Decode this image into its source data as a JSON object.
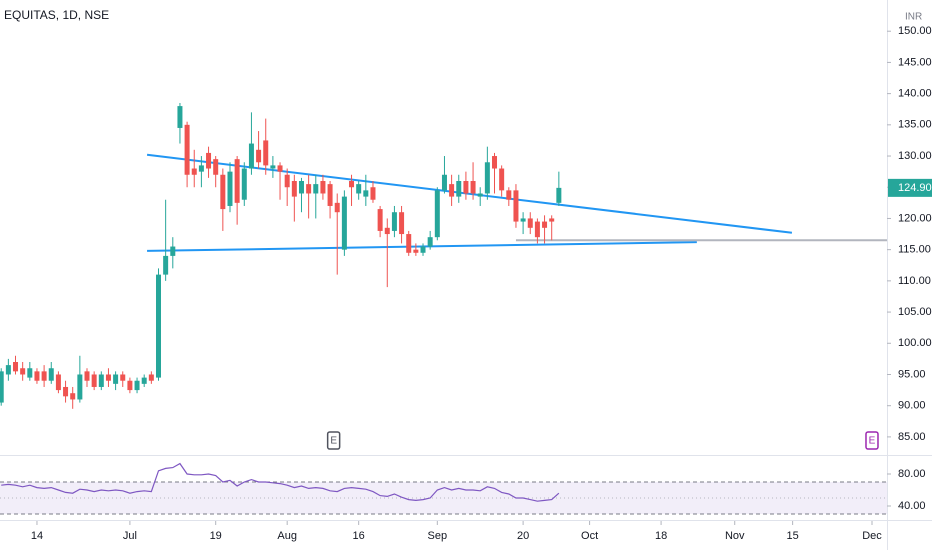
{
  "chart_data": [
    {
      "type": "candlestick",
      "title": "EQUITAS, 1D, NSE",
      "currency": "INR",
      "x": [
        0,
        1,
        2,
        3,
        4,
        5,
        6,
        7,
        8,
        9,
        10,
        11,
        12,
        13,
        14,
        15,
        16,
        17,
        18,
        19,
        20,
        21,
        22,
        23,
        24,
        25,
        26,
        27,
        28,
        29,
        30,
        31,
        32,
        33,
        34,
        35,
        36,
        37,
        38,
        39,
        40,
        41,
        42,
        43,
        44,
        45,
        46,
        47,
        48,
        49,
        50,
        51,
        52,
        53,
        54,
        55,
        56,
        57,
        58,
        59,
        60,
        61,
        62,
        63,
        64,
        65,
        66,
        67,
        68,
        69,
        70,
        71,
        72,
        73,
        74,
        75,
        76,
        77,
        78
      ],
      "open": [
        90.5,
        95,
        97,
        96,
        94.5,
        95.5,
        95.5,
        94,
        95,
        93,
        92,
        91,
        95.5,
        95,
        93,
        95,
        93.5,
        95,
        94,
        92.5,
        93.5,
        95,
        94.5,
        111,
        114,
        134.5,
        135,
        128,
        127.5,
        130.5,
        129.5,
        127,
        122,
        129.5,
        123,
        128,
        131,
        132.5,
        128,
        128.5,
        127,
        126,
        124,
        125.5,
        124,
        126,
        125.5,
        122.5,
        115,
        126,
        124,
        123.5,
        125,
        121.5,
        118.5,
        118,
        121,
        117.5,
        115,
        114.5,
        115.5,
        117,
        124.5,
        125.5,
        123.5,
        126,
        126,
        123.5,
        124,
        130,
        128,
        124.5,
        124.5,
        119.5,
        120,
        119.5,
        119.5,
        120,
        122.5
      ],
      "high": [
        96,
        97.5,
        98,
        97,
        97,
        96,
        96.5,
        97,
        95.5,
        94,
        93,
        98,
        96,
        95.5,
        95.5,
        96,
        95.5,
        95.5,
        94.5,
        94.5,
        95,
        95.5,
        112,
        123,
        117,
        138.5,
        135.5,
        131,
        130,
        131.5,
        130,
        128,
        129,
        130,
        129,
        137,
        134,
        136,
        130,
        129,
        128,
        127,
        126.5,
        127,
        127,
        127,
        126,
        124,
        124.5,
        127,
        126,
        127,
        126,
        122,
        120,
        122,
        122,
        118,
        116,
        116,
        118,
        125,
        130,
        127,
        127,
        127.5,
        129,
        125,
        131.5,
        130.5,
        128.5,
        125,
        125.5,
        121,
        121,
        120,
        120.5,
        120.5,
        127.5
      ],
      "low": [
        90,
        94,
        95,
        94,
        94,
        93.5,
        93,
        93.5,
        92,
        90.5,
        89.5,
        90.5,
        93,
        92.5,
        92.5,
        93,
        92.5,
        93,
        92,
        92,
        93,
        93.5,
        94,
        110,
        112,
        132,
        125,
        125,
        125,
        126.5,
        125,
        118,
        121,
        119,
        122,
        127,
        128,
        127,
        126.5,
        123,
        122,
        119.5,
        121,
        120,
        120,
        123,
        120,
        111,
        114,
        122,
        123,
        122,
        122.5,
        117,
        109,
        117,
        116,
        114,
        114,
        114,
        115,
        116.5,
        124,
        122,
        122.5,
        123,
        123,
        122,
        123,
        124,
        123.5,
        122,
        118.5,
        117.5,
        117.5,
        116,
        116,
        116.5,
        122
      ],
      "close": [
        95.5,
        96.5,
        95.5,
        95,
        96,
        94,
        94,
        96,
        92.5,
        91.5,
        91,
        95,
        94,
        93,
        95,
        94,
        95,
        94,
        92.5,
        94,
        94.5,
        94,
        111,
        114,
        115.5,
        138,
        127,
        127,
        128.5,
        128,
        127,
        121.5,
        127.5,
        122.5,
        128,
        132,
        129,
        128.5,
        128.5,
        127.5,
        125,
        123.5,
        126,
        124,
        125.5,
        124,
        122,
        121,
        123.5,
        125,
        125.5,
        124.5,
        123,
        118,
        117.5,
        121,
        117.5,
        114.5,
        114.5,
        115.5,
        117,
        124.5,
        127,
        123.5,
        126,
        124,
        124,
        124,
        129,
        128,
        124.5,
        123,
        119.5,
        120,
        118.5,
        117,
        118.5,
        119.5,
        124.9
      ],
      "up_color": "#26a69a",
      "down_color": "#ef5350",
      "xlim": [
        -0.17,
        123.9
      ],
      "ylim": [
        82.1,
        155
      ],
      "yticks": [
        {
          "value": 85,
          "label": "85.00"
        },
        {
          "value": 90,
          "label": "90.00"
        },
        {
          "value": 95,
          "label": "95.00"
        },
        {
          "value": 100,
          "label": "100.00"
        },
        {
          "value": 105,
          "label": "105.00"
        },
        {
          "value": 110,
          "label": "110.00"
        },
        {
          "value": 115,
          "label": "115.00"
        },
        {
          "value": 120,
          "label": "120.00"
        },
        {
          "value": 125,
          "label": "125.00"
        },
        {
          "value": 130,
          "label": "130.00"
        },
        {
          "value": 135,
          "label": "135.00"
        },
        {
          "value": 140,
          "label": "140.00"
        },
        {
          "value": 145,
          "label": "145.00"
        },
        {
          "value": 150,
          "label": "150.00"
        }
      ],
      "xticks": [
        {
          "value": 5,
          "label": "14"
        },
        {
          "value": 18,
          "label": "Jul"
        },
        {
          "value": 30,
          "label": "19"
        },
        {
          "value": 40,
          "label": "Aug"
        },
        {
          "value": 50,
          "label": "16"
        },
        {
          "value": 61,
          "label": "Sep"
        },
        {
          "value": 73,
          "label": "20"
        },
        {
          "value": 82.3,
          "label": "Oct"
        },
        {
          "value": 92.3,
          "label": "18"
        },
        {
          "value": 102.6,
          "label": "Nov"
        },
        {
          "value": 110.7,
          "label": "15"
        },
        {
          "value": 121.8,
          "label": "Dec"
        }
      ],
      "last_price": {
        "value": 124.9,
        "label": "124.90"
      },
      "trendlines": [
        {
          "x": [
            20.4,
            110.6
          ],
          "y": [
            130.2,
            117.7
          ],
          "color": "#2196f3"
        },
        {
          "x": [
            20.4,
            97.3
          ],
          "y": [
            114.8,
            116.2
          ],
          "color": "#2196f3"
        },
        {
          "x": [
            72,
            123.9
          ],
          "y": [
            116.5,
            116.5
          ],
          "color": "#b2b5be"
        }
      ],
      "events": [
        {
          "x": 46.5,
          "label": "E",
          "color": "#50535e"
        },
        {
          "x": 121.8,
          "label": "E",
          "color": "#9c27b0"
        }
      ]
    },
    {
      "type": "line",
      "x": [
        0,
        1,
        2,
        3,
        4,
        5,
        6,
        7,
        8,
        9,
        10,
        11,
        12,
        13,
        14,
        15,
        16,
        17,
        18,
        19,
        20,
        21,
        22,
        23,
        24,
        25,
        26,
        27,
        28,
        29,
        30,
        31,
        32,
        33,
        34,
        35,
        36,
        37,
        38,
        39,
        40,
        41,
        42,
        43,
        44,
        45,
        46,
        47,
        48,
        49,
        50,
        51,
        52,
        53,
        54,
        55,
        56,
        57,
        58,
        59,
        60,
        61,
        62,
        63,
        64,
        65,
        66,
        67,
        68,
        69,
        70,
        71,
        72,
        73,
        74,
        75,
        76,
        77,
        78
      ],
      "series": [
        {
          "color": "#7e57c2",
          "values": [
            66,
            67,
            66,
            64,
            66,
            63,
            62,
            63,
            60,
            57,
            56,
            61,
            60,
            58,
            60,
            59,
            60,
            59,
            56,
            58,
            59,
            58,
            84,
            87,
            88,
            93,
            80,
            79,
            79,
            80,
            78,
            70,
            72,
            65,
            70,
            73,
            70,
            70,
            69,
            68,
            66,
            63,
            65,
            62,
            63,
            62,
            59,
            58,
            62,
            63,
            62,
            61,
            58,
            53,
            52,
            55,
            51,
            48,
            47,
            48,
            50,
            60,
            63,
            60,
            62,
            60,
            60,
            59,
            64,
            62,
            57,
            55,
            50,
            50,
            48,
            46,
            47,
            48,
            56
          ]
        }
      ],
      "xlim": [
        -0.17,
        123.9
      ],
      "ylim": [
        22.5,
        103.75
      ],
      "yticks": [
        {
          "value": 40,
          "label": "40.00"
        },
        {
          "value": 80,
          "label": "80.00"
        }
      ],
      "bands": [
        30,
        70
      ],
      "midline": 50,
      "band_color": "#7e57c2"
    }
  ]
}
